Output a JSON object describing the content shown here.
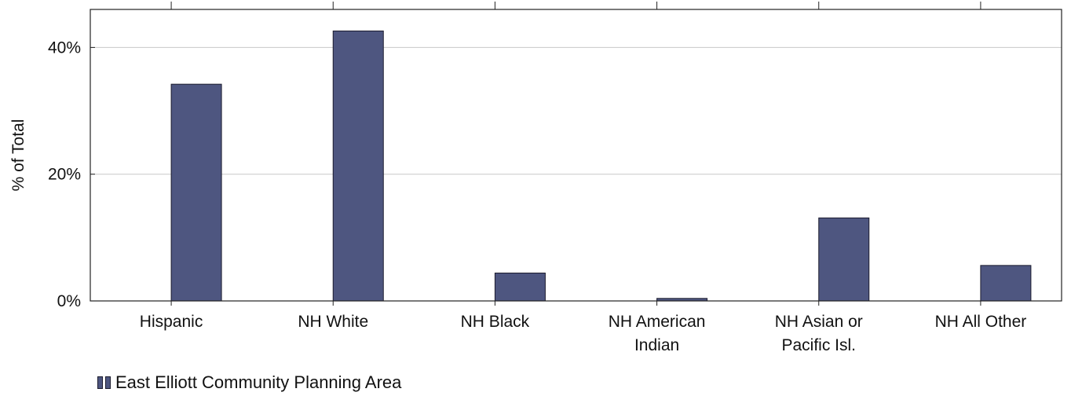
{
  "chart_data": {
    "type": "bar",
    "categories": [
      "Hispanic",
      "NH White",
      "NH Black",
      "NH American Indian",
      "NH Asian or Pacific Isl.",
      "NH All Other"
    ],
    "category_lines": [
      [
        "Hispanic"
      ],
      [
        "NH White"
      ],
      [
        "NH Black"
      ],
      [
        "NH American",
        "Indian"
      ],
      [
        "NH Asian or",
        "Pacific Isl."
      ],
      [
        "NH All Other"
      ]
    ],
    "series": [
      {
        "name": "East Elliott Community Planning Area",
        "values": [
          34.2,
          42.6,
          4.4,
          0.4,
          13.1,
          5.6
        ],
        "color": "#4e5680",
        "stroke": "#1c1c2e"
      }
    ],
    "ylabel": "% of Total",
    "ylim": [
      0,
      46
    ],
    "yticks": [
      0,
      20,
      40
    ],
    "ytick_labels": [
      "0%",
      "20%",
      "40%"
    ],
    "grid": true,
    "legend_position": "bottom-left"
  }
}
